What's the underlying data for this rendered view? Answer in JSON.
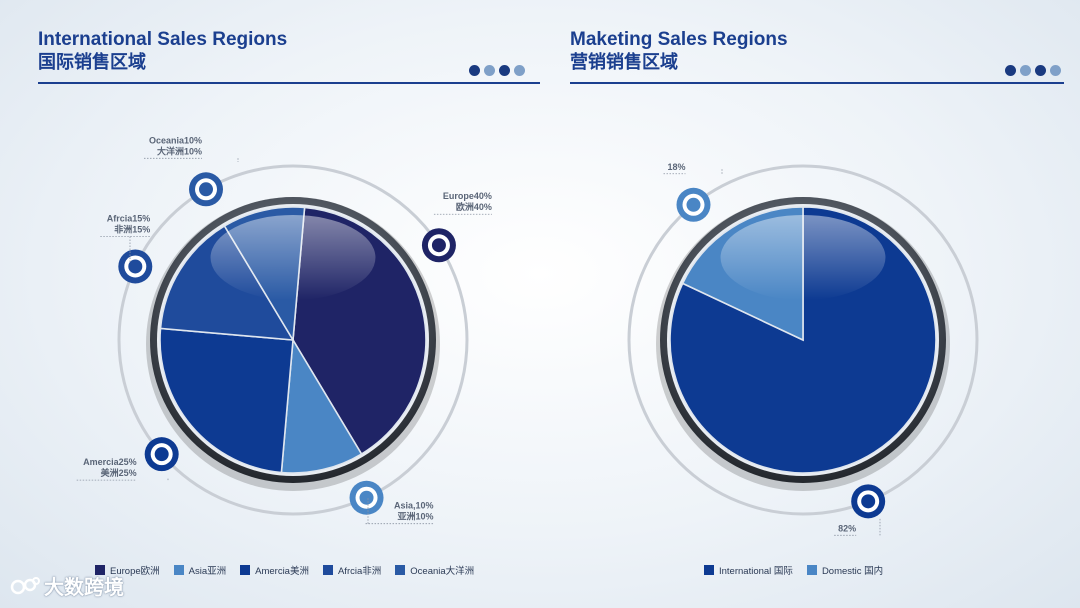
{
  "left_panel": {
    "title_en": "International Sales Regions",
    "title_cn": "国际销售区域"
  },
  "right_panel": {
    "title_en": "Maketing Sales Regions",
    "title_cn": "营销销售区域"
  },
  "colors": {
    "title": "#1b3f8f",
    "europe": "#1f2466",
    "asia": "#4a86c5",
    "america": "#0d3a92",
    "africa": "#1f4b9c",
    "oceania": "#2a5aa5",
    "international": "#0d3a92",
    "domestic": "#4a86c5",
    "dot_dark": "#1a3a80",
    "dot_light": "#7fa0c8"
  },
  "watermark": {
    "text": "大数跨境"
  },
  "chart_data": [
    {
      "type": "pie",
      "slices": [
        {
          "label": "Europe",
          "value": 40,
          "annotation": [
            "Europe40%",
            "欧洲40%"
          ],
          "legend": "Europe欧洲"
        },
        {
          "label": "Asia",
          "value": 10,
          "annotation": [
            "Asia,10%",
            "亚洲10%"
          ],
          "legend": "Asia亚洲"
        },
        {
          "label": "Amercia",
          "value": 25,
          "annotation": [
            "Amercia25%",
            "美洲25%"
          ],
          "legend": "Amercia美洲"
        },
        {
          "label": "Afrcia",
          "value": 15,
          "annotation": [
            "Afrcia15%",
            "非洲15%"
          ],
          "legend": "Afrcia非洲"
        },
        {
          "label": "Oceania",
          "value": 10,
          "annotation": [
            "Oceania10%",
            "大洋洲10%"
          ],
          "legend": "Oceania大洋洲"
        }
      ]
    },
    {
      "type": "pie",
      "slices": [
        {
          "label": "International",
          "value": 82,
          "annotation": [
            "82%"
          ],
          "legend": "International 国际"
        },
        {
          "label": "Domestic",
          "value": 18,
          "annotation": [
            "18%"
          ],
          "legend": "Domestic 国内"
        }
      ]
    }
  ]
}
